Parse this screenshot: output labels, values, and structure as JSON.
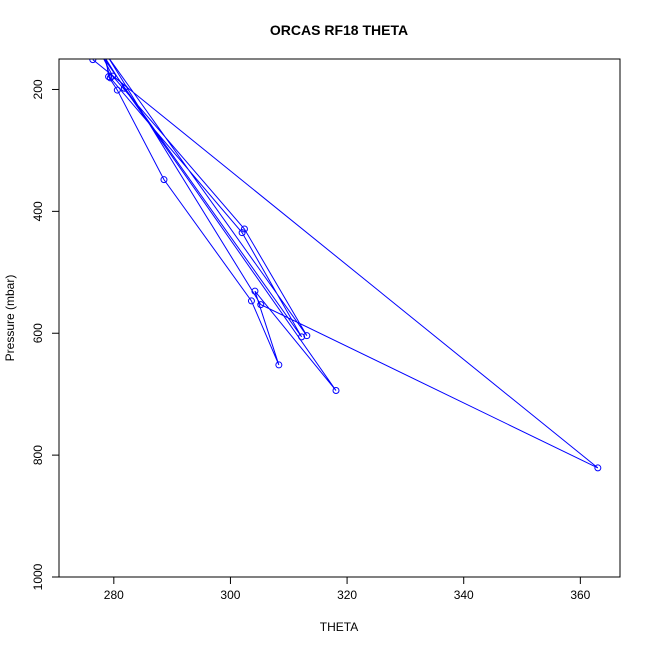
{
  "chart_data": {
    "type": "line",
    "title": "ORCAS RF18 THETA",
    "xlabel": "THETA",
    "ylabel": "Pressure (mbar)",
    "xlim": [
      270.6,
      366.8
    ],
    "ylim": [
      1000,
      150
    ],
    "y_reversed": true,
    "x_ticks": [
      "280",
      "300",
      "320",
      "340",
      "360"
    ],
    "y_ticks": [
      "200",
      "400",
      "600",
      "800",
      "1000"
    ],
    "line_color": "#0000ff",
    "grid": false,
    "series": [
      {
        "points": [
          {
            "x": 278.6,
            "y": 145
          },
          {
            "x": 279.1,
            "y": 179
          },
          {
            "x": 280.6,
            "y": 201
          },
          {
            "x": 288.6,
            "y": 348
          },
          {
            "x": 303.6,
            "y": 547
          },
          {
            "x": 308.3,
            "y": 652
          },
          {
            "x": 304.2,
            "y": 531
          },
          {
            "x": 318.1,
            "y": 694
          },
          {
            "x": 281.8,
            "y": 198
          },
          {
            "x": 278.3,
            "y": 145
          },
          {
            "x": 279.4,
            "y": 181
          },
          {
            "x": 302.0,
            "y": 435
          },
          {
            "x": 312.2,
            "y": 606
          },
          {
            "x": 278.0,
            "y": 145
          },
          {
            "x": 279.8,
            "y": 178
          },
          {
            "x": 302.4,
            "y": 429
          },
          {
            "x": 313.1,
            "y": 604
          },
          {
            "x": 278.9,
            "y": 145
          },
          {
            "x": 305.2,
            "y": 553
          },
          {
            "x": 363.0,
            "y": 821
          },
          {
            "x": 276.4,
            "y": 151
          }
        ]
      }
    ]
  }
}
